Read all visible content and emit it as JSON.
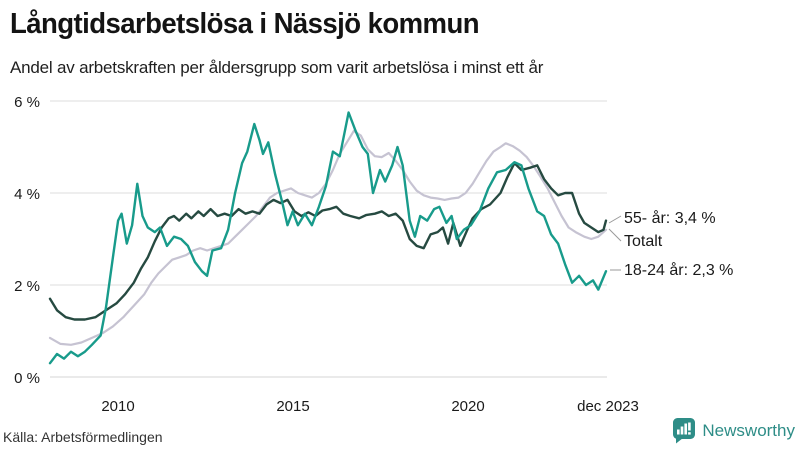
{
  "header": {
    "title": "Långtidsarbetslösa i Nässjö kommun",
    "subtitle": "Andel av arbetskraften per åldersgrupp som varit arbetslösa i minst ett år"
  },
  "footer": {
    "source": "Källa: Arbetsförmedlingen",
    "brand": "Newsworthy"
  },
  "colors": {
    "teal_line": "#189b8b",
    "dark_line": "#264a41",
    "gray_line": "#c6c3d2",
    "gridline": "#dedede",
    "text": "#1a1a1a",
    "connector": "#999999",
    "brand_teal": "#2e8d87"
  },
  "chart_data": {
    "type": "line",
    "title": "Långtidsarbetslösa i Nässjö kommun",
    "subtitle": "Andel av arbetskraften per åldersgrupp som varit arbetslösa i minst ett år",
    "unit": "%",
    "grid": true,
    "legend_position": "end-of-line-labels-right",
    "x_axis": {
      "range": [
        2008,
        2023.95
      ],
      "ticks": [
        {
          "label": "2010",
          "year": 2010
        },
        {
          "label": "2015",
          "year": 2015
        },
        {
          "label": "2020",
          "year": 2020
        },
        {
          "label": "dec 2023",
          "year": 2023.92
        }
      ]
    },
    "y_axis": {
      "range": [
        0,
        6
      ],
      "ticks": [
        {
          "label": "6 %",
          "value": 6
        },
        {
          "label": "4 %",
          "value": 4
        },
        {
          "label": "2 %",
          "value": 2
        },
        {
          "label": "0 %",
          "value": 0
        }
      ]
    },
    "series": [
      {
        "name": "Totalt",
        "label": "Totalt",
        "end_value": 3.2,
        "color": "#c6c3d2",
        "width": 2.2,
        "points": [
          [
            2008.0,
            0.85
          ],
          [
            2008.3,
            0.72
          ],
          [
            2008.6,
            0.7
          ],
          [
            2008.9,
            0.75
          ],
          [
            2009.2,
            0.85
          ],
          [
            2009.5,
            0.95
          ],
          [
            2009.8,
            1.1
          ],
          [
            2010.1,
            1.3
          ],
          [
            2010.4,
            1.55
          ],
          [
            2010.7,
            1.8
          ],
          [
            2010.9,
            2.05
          ],
          [
            2011.1,
            2.25
          ],
          [
            2011.3,
            2.4
          ],
          [
            2011.5,
            2.55
          ],
          [
            2011.7,
            2.6
          ],
          [
            2011.9,
            2.65
          ],
          [
            2012.1,
            2.75
          ],
          [
            2012.3,
            2.8
          ],
          [
            2012.5,
            2.75
          ],
          [
            2012.7,
            2.8
          ],
          [
            2012.9,
            2.85
          ],
          [
            2013.1,
            2.9
          ],
          [
            2013.3,
            3.05
          ],
          [
            2013.5,
            3.2
          ],
          [
            2013.7,
            3.35
          ],
          [
            2013.9,
            3.5
          ],
          [
            2014.1,
            3.7
          ],
          [
            2014.3,
            3.9
          ],
          [
            2014.5,
            4.0
          ],
          [
            2014.7,
            4.05
          ],
          [
            2014.9,
            4.1
          ],
          [
            2015.1,
            4.0
          ],
          [
            2015.3,
            3.95
          ],
          [
            2015.5,
            3.9
          ],
          [
            2015.7,
            4.0
          ],
          [
            2015.9,
            4.2
          ],
          [
            2016.1,
            4.5
          ],
          [
            2016.3,
            4.85
          ],
          [
            2016.5,
            5.1
          ],
          [
            2016.7,
            5.35
          ],
          [
            2016.9,
            5.25
          ],
          [
            2017.1,
            4.95
          ],
          [
            2017.3,
            4.8
          ],
          [
            2017.5,
            4.78
          ],
          [
            2017.7,
            4.87
          ],
          [
            2017.9,
            4.7
          ],
          [
            2018.1,
            4.5
          ],
          [
            2018.3,
            4.25
          ],
          [
            2018.5,
            4.05
          ],
          [
            2018.7,
            3.95
          ],
          [
            2018.9,
            3.9
          ],
          [
            2019.1,
            3.88
          ],
          [
            2019.3,
            3.85
          ],
          [
            2019.5,
            3.88
          ],
          [
            2019.7,
            3.9
          ],
          [
            2019.9,
            4.0
          ],
          [
            2020.1,
            4.2
          ],
          [
            2020.3,
            4.45
          ],
          [
            2020.5,
            4.7
          ],
          [
            2020.7,
            4.9
          ],
          [
            2020.9,
            5.0
          ],
          [
            2021.05,
            5.08
          ],
          [
            2021.25,
            5.02
          ],
          [
            2021.45,
            4.92
          ],
          [
            2021.65,
            4.78
          ],
          [
            2021.85,
            4.58
          ],
          [
            2022.05,
            4.35
          ],
          [
            2022.25,
            4.1
          ],
          [
            2022.45,
            3.8
          ],
          [
            2022.65,
            3.5
          ],
          [
            2022.85,
            3.25
          ],
          [
            2023.05,
            3.15
          ],
          [
            2023.3,
            3.05
          ],
          [
            2023.5,
            3.0
          ],
          [
            2023.7,
            3.05
          ],
          [
            2023.92,
            3.2
          ]
        ]
      },
      {
        "name": "55- år",
        "label": "55- år: 3,4 %",
        "end_value": 3.4,
        "color": "#264a41",
        "width": 2.4,
        "points": [
          [
            2008.0,
            1.7
          ],
          [
            2008.2,
            1.45
          ],
          [
            2008.45,
            1.3
          ],
          [
            2008.7,
            1.25
          ],
          [
            2009.0,
            1.25
          ],
          [
            2009.3,
            1.3
          ],
          [
            2009.6,
            1.45
          ],
          [
            2009.9,
            1.6
          ],
          [
            2010.15,
            1.8
          ],
          [
            2010.4,
            2.05
          ],
          [
            2010.6,
            2.35
          ],
          [
            2010.8,
            2.6
          ],
          [
            2011.0,
            2.95
          ],
          [
            2011.2,
            3.25
          ],
          [
            2011.4,
            3.45
          ],
          [
            2011.55,
            3.5
          ],
          [
            2011.7,
            3.4
          ],
          [
            2011.9,
            3.55
          ],
          [
            2012.05,
            3.45
          ],
          [
            2012.25,
            3.6
          ],
          [
            2012.4,
            3.5
          ],
          [
            2012.6,
            3.65
          ],
          [
            2012.8,
            3.5
          ],
          [
            2013.0,
            3.55
          ],
          [
            2013.2,
            3.5
          ],
          [
            2013.4,
            3.65
          ],
          [
            2013.6,
            3.55
          ],
          [
            2013.8,
            3.6
          ],
          [
            2014.0,
            3.55
          ],
          [
            2014.2,
            3.75
          ],
          [
            2014.4,
            3.85
          ],
          [
            2014.6,
            3.78
          ],
          [
            2014.8,
            3.85
          ],
          [
            2015.0,
            3.6
          ],
          [
            2015.2,
            3.5
          ],
          [
            2015.4,
            3.58
          ],
          [
            2015.6,
            3.5
          ],
          [
            2015.8,
            3.62
          ],
          [
            2016.0,
            3.65
          ],
          [
            2016.2,
            3.7
          ],
          [
            2016.4,
            3.55
          ],
          [
            2016.6,
            3.5
          ],
          [
            2016.85,
            3.45
          ],
          [
            2017.05,
            3.52
          ],
          [
            2017.3,
            3.55
          ],
          [
            2017.5,
            3.6
          ],
          [
            2017.7,
            3.5
          ],
          [
            2017.9,
            3.55
          ],
          [
            2018.1,
            3.4
          ],
          [
            2018.3,
            3.0
          ],
          [
            2018.5,
            2.85
          ],
          [
            2018.7,
            2.8
          ],
          [
            2018.9,
            3.1
          ],
          [
            2019.1,
            3.15
          ],
          [
            2019.25,
            3.25
          ],
          [
            2019.4,
            2.9
          ],
          [
            2019.55,
            3.35
          ],
          [
            2019.75,
            2.85
          ],
          [
            2019.95,
            3.2
          ],
          [
            2020.1,
            3.45
          ],
          [
            2020.35,
            3.65
          ],
          [
            2020.6,
            3.75
          ],
          [
            2020.9,
            4.0
          ],
          [
            2021.1,
            4.35
          ],
          [
            2021.3,
            4.65
          ],
          [
            2021.5,
            4.5
          ],
          [
            2021.75,
            4.55
          ],
          [
            2021.95,
            4.6
          ],
          [
            2022.15,
            4.3
          ],
          [
            2022.35,
            4.1
          ],
          [
            2022.55,
            3.95
          ],
          [
            2022.75,
            4.0
          ],
          [
            2022.95,
            4.0
          ],
          [
            2023.15,
            3.55
          ],
          [
            2023.3,
            3.35
          ],
          [
            2023.5,
            3.25
          ],
          [
            2023.7,
            3.15
          ],
          [
            2023.85,
            3.2
          ],
          [
            2023.92,
            3.4
          ]
        ]
      },
      {
        "name": "18-24 år",
        "label": "18-24 år: 2,3 %",
        "end_value": 2.3,
        "color": "#189b8b",
        "width": 2.4,
        "points": [
          [
            2008.0,
            0.3
          ],
          [
            2008.2,
            0.5
          ],
          [
            2008.4,
            0.4
          ],
          [
            2008.6,
            0.55
          ],
          [
            2008.8,
            0.45
          ],
          [
            2009.0,
            0.55
          ],
          [
            2009.2,
            0.7
          ],
          [
            2009.45,
            0.9
          ],
          [
            2009.6,
            1.5
          ],
          [
            2009.8,
            2.6
          ],
          [
            2009.95,
            3.4
          ],
          [
            2010.05,
            3.55
          ],
          [
            2010.2,
            2.9
          ],
          [
            2010.35,
            3.3
          ],
          [
            2010.5,
            4.2
          ],
          [
            2010.65,
            3.5
          ],
          [
            2010.8,
            3.25
          ],
          [
            2011.0,
            3.15
          ],
          [
            2011.15,
            3.25
          ],
          [
            2011.35,
            2.85
          ],
          [
            2011.55,
            3.05
          ],
          [
            2011.75,
            3.0
          ],
          [
            2011.95,
            2.85
          ],
          [
            2012.15,
            2.5
          ],
          [
            2012.35,
            2.3
          ],
          [
            2012.5,
            2.2
          ],
          [
            2012.65,
            2.75
          ],
          [
            2012.9,
            2.8
          ],
          [
            2013.1,
            3.2
          ],
          [
            2013.3,
            4.0
          ],
          [
            2013.5,
            4.65
          ],
          [
            2013.65,
            4.9
          ],
          [
            2013.85,
            5.5
          ],
          [
            2014.0,
            5.15
          ],
          [
            2014.1,
            4.85
          ],
          [
            2014.25,
            5.1
          ],
          [
            2014.45,
            4.4
          ],
          [
            2014.65,
            3.8
          ],
          [
            2014.8,
            3.3
          ],
          [
            2014.95,
            3.6
          ],
          [
            2015.1,
            3.3
          ],
          [
            2015.3,
            3.55
          ],
          [
            2015.5,
            3.3
          ],
          [
            2015.7,
            3.7
          ],
          [
            2015.9,
            4.15
          ],
          [
            2016.1,
            4.9
          ],
          [
            2016.3,
            4.8
          ],
          [
            2016.55,
            5.75
          ],
          [
            2016.75,
            5.35
          ],
          [
            2016.95,
            5.0
          ],
          [
            2017.1,
            4.85
          ],
          [
            2017.25,
            4.0
          ],
          [
            2017.45,
            4.5
          ],
          [
            2017.6,
            4.25
          ],
          [
            2017.8,
            4.6
          ],
          [
            2017.95,
            5.0
          ],
          [
            2018.1,
            4.6
          ],
          [
            2018.3,
            3.4
          ],
          [
            2018.45,
            3.05
          ],
          [
            2018.6,
            3.5
          ],
          [
            2018.8,
            3.4
          ],
          [
            2019.0,
            3.65
          ],
          [
            2019.15,
            3.7
          ],
          [
            2019.35,
            3.35
          ],
          [
            2019.5,
            3.5
          ],
          [
            2019.65,
            3.0
          ],
          [
            2019.85,
            3.2
          ],
          [
            2020.05,
            3.3
          ],
          [
            2020.3,
            3.6
          ],
          [
            2020.55,
            4.1
          ],
          [
            2020.8,
            4.45
          ],
          [
            2021.05,
            4.5
          ],
          [
            2021.3,
            4.67
          ],
          [
            2021.5,
            4.6
          ],
          [
            2021.7,
            4.1
          ],
          [
            2021.95,
            3.6
          ],
          [
            2022.15,
            3.5
          ],
          [
            2022.35,
            3.1
          ],
          [
            2022.55,
            2.9
          ],
          [
            2022.75,
            2.45
          ],
          [
            2022.95,
            2.05
          ],
          [
            2023.15,
            2.2
          ],
          [
            2023.35,
            2.0
          ],
          [
            2023.55,
            2.1
          ],
          [
            2023.7,
            1.9
          ],
          [
            2023.92,
            2.3
          ]
        ]
      }
    ]
  }
}
